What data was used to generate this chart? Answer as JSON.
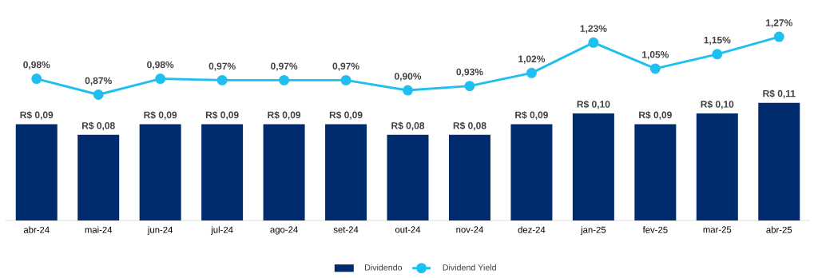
{
  "chart_data": [
    {
      "type": "bar",
      "categories": [
        "abr-24",
        "mai-24",
        "jun-24",
        "jul-24",
        "ago-24",
        "set-24",
        "out-24",
        "nov-24",
        "dez-24",
        "jan-25",
        "fev-25",
        "mar-25",
        "abr-25"
      ],
      "series": [
        {
          "name": "Dividendo",
          "color": "#002b6e",
          "values": [
            0.09,
            0.08,
            0.09,
            0.09,
            0.09,
            0.09,
            0.08,
            0.08,
            0.09,
            0.1,
            0.09,
            0.1,
            0.11
          ],
          "value_labels": [
            "R$ 0,09",
            "R$ 0,08",
            "R$ 0,09",
            "R$ 0,09",
            "R$ 0,09",
            "R$ 0,09",
            "R$ 0,08",
            "R$ 0,08",
            "R$ 0,09",
            "R$ 0,10",
            "R$ 0,09",
            "R$ 0,10",
            "R$ 0,11"
          ]
        }
      ],
      "legend": "bottom",
      "tick_labels": "x"
    },
    {
      "type": "line",
      "categories": [
        null,
        null,
        null,
        null,
        null,
        null,
        null,
        null,
        null,
        null,
        null,
        null,
        null
      ],
      "series": [
        {
          "name": "Dividend Yield",
          "color": "#1fbfef",
          "values": [
            0.98,
            0.87,
            0.98,
            0.97,
            0.97,
            0.97,
            0.9,
            0.93,
            1.02,
            1.23,
            1.05,
            1.15,
            1.27
          ],
          "value_labels": [
            "0,98%",
            "0,87%",
            "0,98%",
            "0,97%",
            "0,97%",
            "0,97%",
            "0,90%",
            "0,93%",
            "1,02%",
            "1,23%",
            "1,05%",
            "1,15%",
            "1,27%"
          ]
        }
      ],
      "marker": "circle",
      "line_style": "solid",
      "legend": "bottom",
      "tick_labels": false
    }
  ]
}
